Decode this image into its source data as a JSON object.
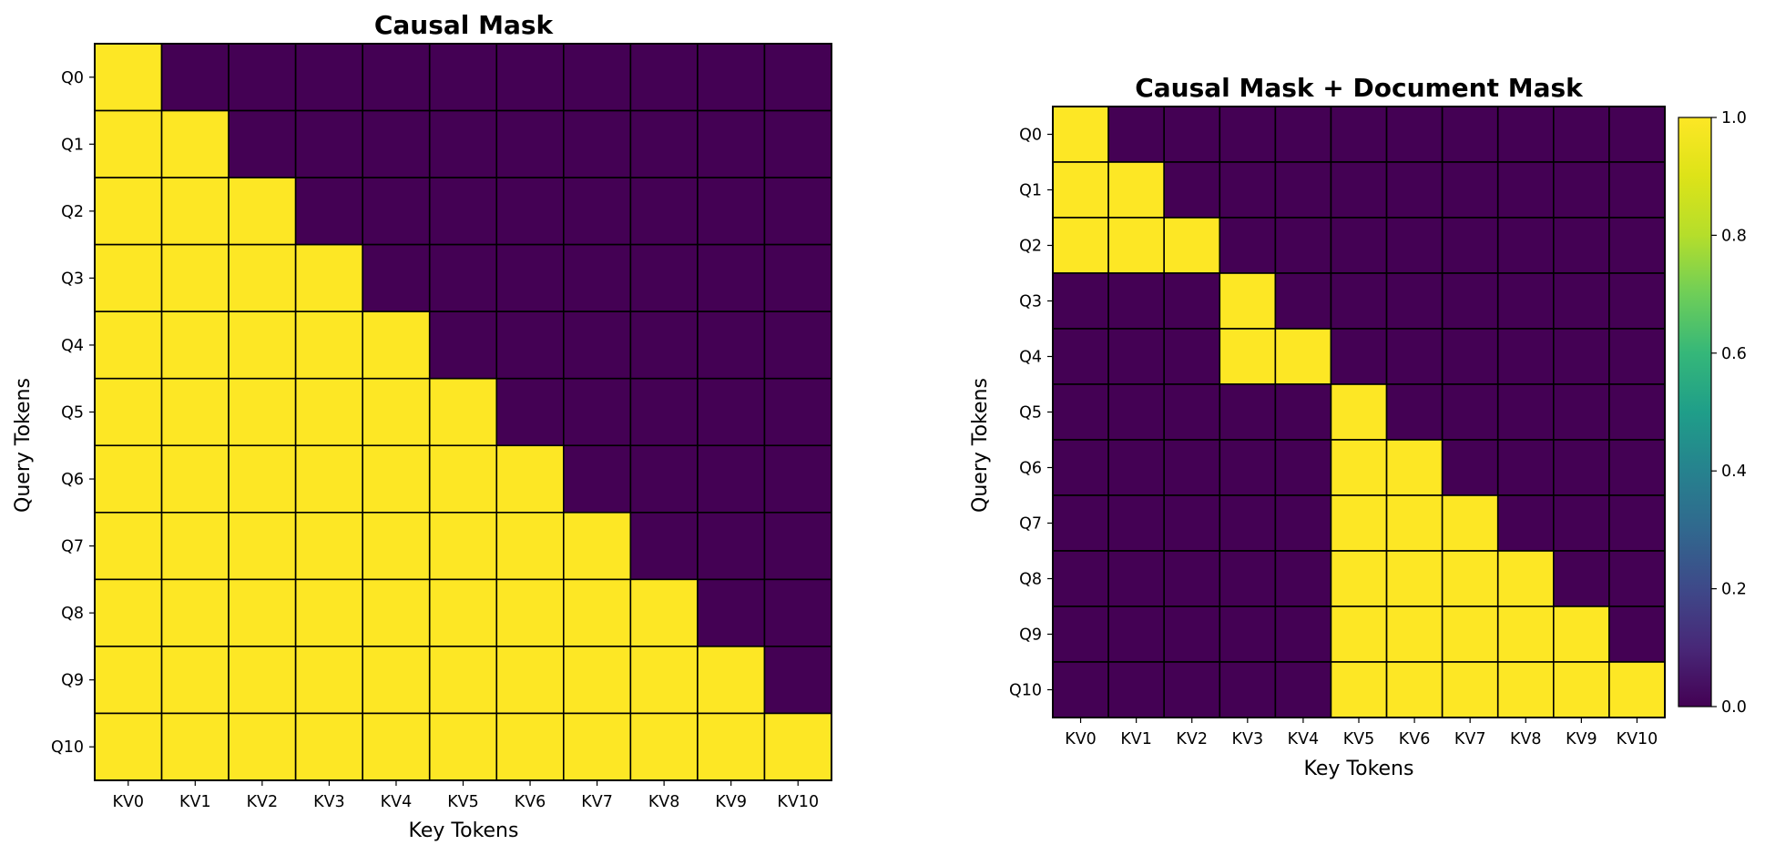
{
  "chart_data": [
    {
      "type": "heatmap",
      "title": "Causal Mask",
      "xlabel": "Key Tokens",
      "ylabel": "Query Tokens",
      "x": [
        "KV0",
        "KV1",
        "KV2",
        "KV3",
        "KV4",
        "KV5",
        "KV6",
        "KV7",
        "KV8",
        "KV9",
        "KV10"
      ],
      "y": [
        "Q0",
        "Q1",
        "Q2",
        "Q3",
        "Q4",
        "Q5",
        "Q6",
        "Q7",
        "Q8",
        "Q9",
        "Q10"
      ],
      "values": [
        [
          1,
          0,
          0,
          0,
          0,
          0,
          0,
          0,
          0,
          0,
          0
        ],
        [
          1,
          1,
          0,
          0,
          0,
          0,
          0,
          0,
          0,
          0,
          0
        ],
        [
          1,
          1,
          1,
          0,
          0,
          0,
          0,
          0,
          0,
          0,
          0
        ],
        [
          1,
          1,
          1,
          1,
          0,
          0,
          0,
          0,
          0,
          0,
          0
        ],
        [
          1,
          1,
          1,
          1,
          1,
          0,
          0,
          0,
          0,
          0,
          0
        ],
        [
          1,
          1,
          1,
          1,
          1,
          1,
          0,
          0,
          0,
          0,
          0
        ],
        [
          1,
          1,
          1,
          1,
          1,
          1,
          1,
          0,
          0,
          0,
          0
        ],
        [
          1,
          1,
          1,
          1,
          1,
          1,
          1,
          1,
          0,
          0,
          0
        ],
        [
          1,
          1,
          1,
          1,
          1,
          1,
          1,
          1,
          1,
          0,
          0
        ],
        [
          1,
          1,
          1,
          1,
          1,
          1,
          1,
          1,
          1,
          1,
          0
        ],
        [
          1,
          1,
          1,
          1,
          1,
          1,
          1,
          1,
          1,
          1,
          1
        ]
      ],
      "vmin": 0,
      "vmax": 1,
      "colorbar": false
    },
    {
      "type": "heatmap",
      "title": "Causal Mask + Document Mask",
      "xlabel": "Key Tokens",
      "ylabel": "Query Tokens",
      "x": [
        "KV0",
        "KV1",
        "KV2",
        "KV3",
        "KV4",
        "KV5",
        "KV6",
        "KV7",
        "KV8",
        "KV9",
        "KV10"
      ],
      "y": [
        "Q0",
        "Q1",
        "Q2",
        "Q3",
        "Q4",
        "Q5",
        "Q6",
        "Q7",
        "Q8",
        "Q9",
        "Q10"
      ],
      "values": [
        [
          1,
          0,
          0,
          0,
          0,
          0,
          0,
          0,
          0,
          0,
          0
        ],
        [
          1,
          1,
          0,
          0,
          0,
          0,
          0,
          0,
          0,
          0,
          0
        ],
        [
          1,
          1,
          1,
          0,
          0,
          0,
          0,
          0,
          0,
          0,
          0
        ],
        [
          0,
          0,
          0,
          1,
          0,
          0,
          0,
          0,
          0,
          0,
          0
        ],
        [
          0,
          0,
          0,
          1,
          1,
          0,
          0,
          0,
          0,
          0,
          0
        ],
        [
          0,
          0,
          0,
          0,
          0,
          1,
          0,
          0,
          0,
          0,
          0
        ],
        [
          0,
          0,
          0,
          0,
          0,
          1,
          1,
          0,
          0,
          0,
          0
        ],
        [
          0,
          0,
          0,
          0,
          0,
          1,
          1,
          1,
          0,
          0,
          0
        ],
        [
          0,
          0,
          0,
          0,
          0,
          1,
          1,
          1,
          1,
          0,
          0
        ],
        [
          0,
          0,
          0,
          0,
          0,
          1,
          1,
          1,
          1,
          1,
          0
        ],
        [
          0,
          0,
          0,
          0,
          0,
          1,
          1,
          1,
          1,
          1,
          1
        ]
      ],
      "vmin": 0,
      "vmax": 1,
      "colorbar": true,
      "colorbar_ticks": [
        "0.0",
        "0.2",
        "0.4",
        "0.6",
        "0.8",
        "1.0"
      ]
    }
  ],
  "colormap": "viridis",
  "colors": {
    "low": "#440154",
    "high": "#fde725",
    "gridline": "#000000"
  }
}
